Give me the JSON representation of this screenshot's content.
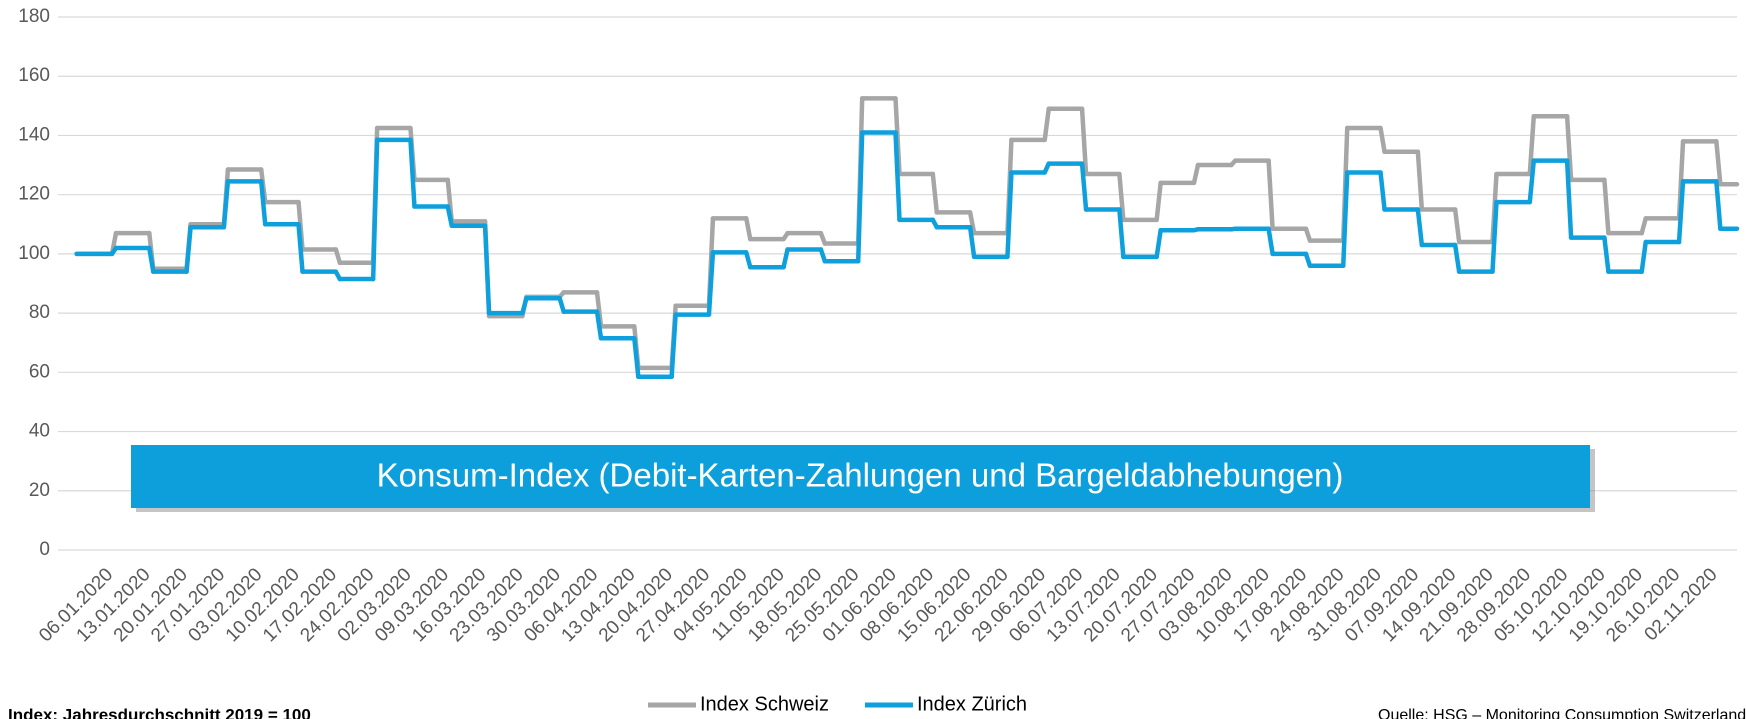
{
  "chart_data": {
    "type": "step",
    "title": "Konsum-Index (Debit-Karten-Zahlungen und Bargeldabhebungen)",
    "note": "Index: Jahresdurchschnitt 2019 = 100",
    "source": "Quelle: HSG – Monitoring Consumption Switzerland",
    "categories": [
      "06.01.2020",
      "13.01.2020",
      "20.01.2020",
      "27.01.2020",
      "03.02.2020",
      "10.02.2020",
      "17.02.2020",
      "24.02.2020",
      "02.03.2020",
      "09.03.2020",
      "16.03.2020",
      "23.03.2020",
      "30.03.2020",
      "06.04.2020",
      "13.04.2020",
      "20.04.2020",
      "27.04.2020",
      "04.05.2020",
      "11.05.2020",
      "18.05.2020",
      "25.05.2020",
      "01.06.2020",
      "08.06.2020",
      "15.06.2020",
      "22.06.2020",
      "29.06.2020",
      "06.07.2020",
      "13.07.2020",
      "20.07.2020",
      "27.07.2020",
      "03.08.2020",
      "10.08.2020",
      "17.08.2020",
      "24.08.2020",
      "31.08.2020",
      "07.09.2020",
      "14.09.2020",
      "21.09.2020",
      "28.09.2020",
      "05.10.2020",
      "12.10.2020",
      "19.10.2020",
      "26.10.2020",
      "02.11.2020",
      null
    ],
    "series": [
      {
        "name": "Index Schweiz",
        "color": "#a6a6a6",
        "values": [
          100,
          107,
          95,
          110,
          128.5,
          117.5,
          101.5,
          97,
          142.5,
          125,
          111,
          79,
          85.5,
          87,
          75.5,
          61.5,
          82.5,
          112,
          105,
          107,
          103.5,
          152.5,
          127,
          114,
          107,
          138.5,
          149,
          127,
          111.5,
          124,
          130,
          131.5,
          108.5,
          104.5,
          142.5,
          134.5,
          115,
          104,
          127,
          146.5,
          125,
          107,
          112,
          138,
          123.5
        ]
      },
      {
        "name": "Index Zürich",
        "color": "#0ea0dc",
        "values": [
          100,
          102,
          94,
          109,
          124.5,
          110,
          94,
          91.5,
          138.5,
          116,
          109.5,
          80,
          85,
          80.5,
          71.5,
          58.5,
          79.5,
          100.5,
          95.5,
          101.5,
          97.5,
          141,
          111.5,
          109,
          99,
          127.5,
          130.5,
          115,
          99,
          108,
          108.3,
          108.5,
          100,
          96,
          127.5,
          115,
          103,
          94,
          117.5,
          131.5,
          105.5,
          94,
          104,
          124.5,
          108.5
        ]
      }
    ],
    "ylim": [
      0,
      180
    ],
    "yticks": [
      0,
      20,
      40,
      60,
      80,
      100,
      120,
      140,
      160,
      180
    ],
    "grid": true
  }
}
